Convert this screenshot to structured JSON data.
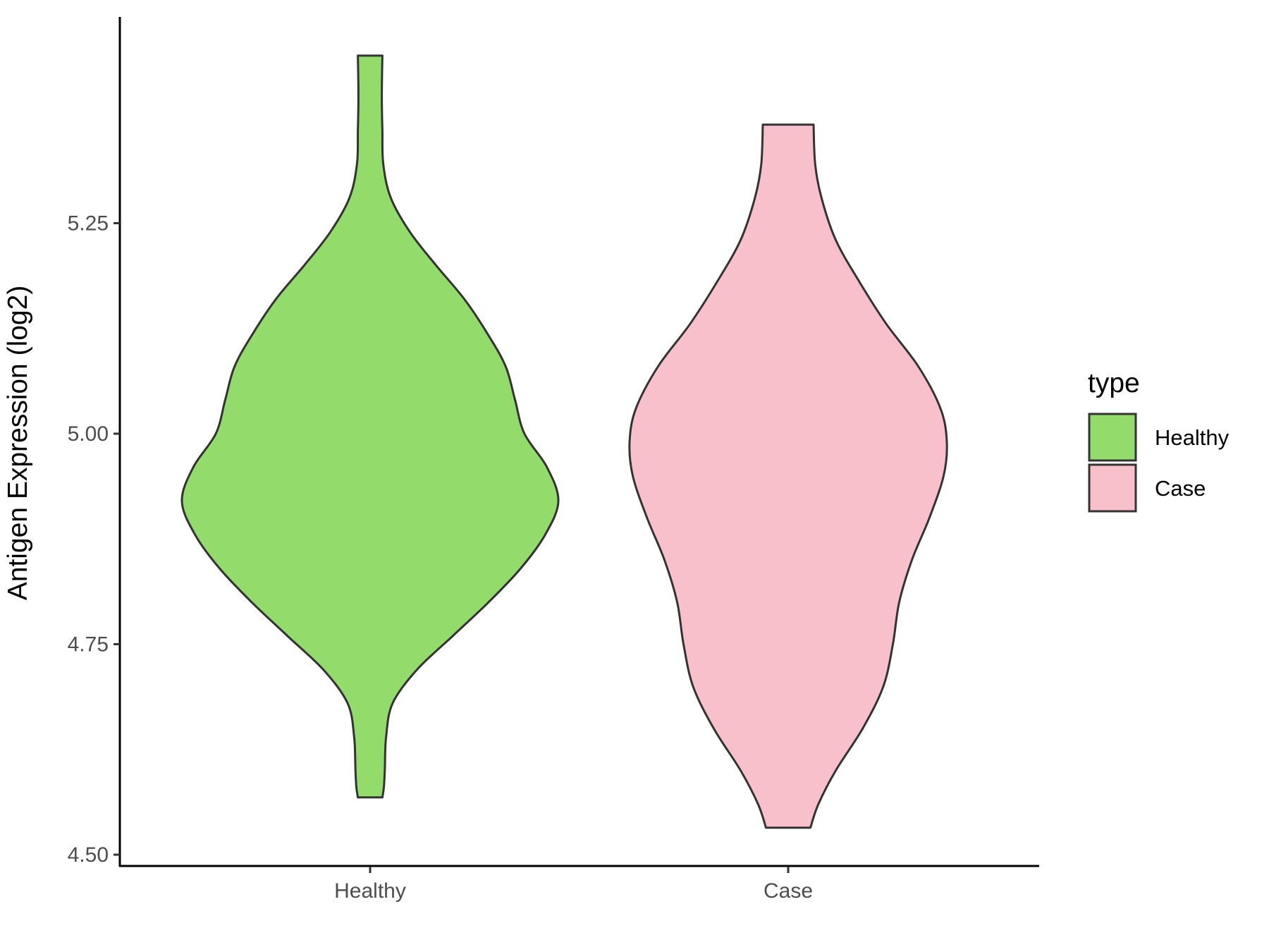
{
  "chart_data": {
    "type": "violin",
    "ylabel": "Antigen Expression (log2)",
    "xlabel": "",
    "ylim": [
      4.49,
      5.5
    ],
    "yticks": [
      4.5,
      4.75,
      5.0,
      5.25
    ],
    "ytick_labels": [
      "4.50",
      "4.75",
      "5.00",
      "5.25"
    ],
    "categories": [
      "Healthy",
      "Case"
    ],
    "grid": false,
    "legend": {
      "title": "type",
      "position": "right",
      "entries": [
        "Healthy",
        "Case"
      ]
    },
    "series": [
      {
        "name": "Healthy",
        "color": "#93DC6B",
        "y_min": 4.568,
        "y_max": 5.449,
        "profile": [
          [
            4.568,
            0.065
          ],
          [
            4.58,
            0.073
          ],
          [
            4.6,
            0.078
          ],
          [
            4.64,
            0.085
          ],
          [
            4.68,
            0.12
          ],
          [
            4.72,
            0.25
          ],
          [
            4.76,
            0.44
          ],
          [
            4.8,
            0.63
          ],
          [
            4.84,
            0.8
          ],
          [
            4.88,
            0.93
          ],
          [
            4.92,
            1.0
          ],
          [
            4.96,
            0.94
          ],
          [
            5.0,
            0.82
          ],
          [
            5.04,
            0.77
          ],
          [
            5.08,
            0.72
          ],
          [
            5.12,
            0.62
          ],
          [
            5.16,
            0.5
          ],
          [
            5.2,
            0.35
          ],
          [
            5.24,
            0.21
          ],
          [
            5.28,
            0.11
          ],
          [
            5.32,
            0.07
          ],
          [
            5.36,
            0.065
          ],
          [
            5.4,
            0.062
          ],
          [
            5.449,
            0.065
          ]
        ]
      },
      {
        "name": "Case",
        "color": "#F8C0CB",
        "y_min": 4.532,
        "y_max": 5.367,
        "profile": [
          [
            4.532,
            0.14
          ],
          [
            4.56,
            0.19
          ],
          [
            4.6,
            0.3
          ],
          [
            4.65,
            0.47
          ],
          [
            4.7,
            0.6
          ],
          [
            4.75,
            0.66
          ],
          [
            4.8,
            0.7
          ],
          [
            4.85,
            0.78
          ],
          [
            4.9,
            0.89
          ],
          [
            4.95,
            0.98
          ],
          [
            4.99,
            1.0
          ],
          [
            5.03,
            0.96
          ],
          [
            5.08,
            0.82
          ],
          [
            5.13,
            0.62
          ],
          [
            5.18,
            0.45
          ],
          [
            5.23,
            0.3
          ],
          [
            5.28,
            0.21
          ],
          [
            5.32,
            0.17
          ],
          [
            5.367,
            0.16
          ]
        ]
      }
    ]
  }
}
